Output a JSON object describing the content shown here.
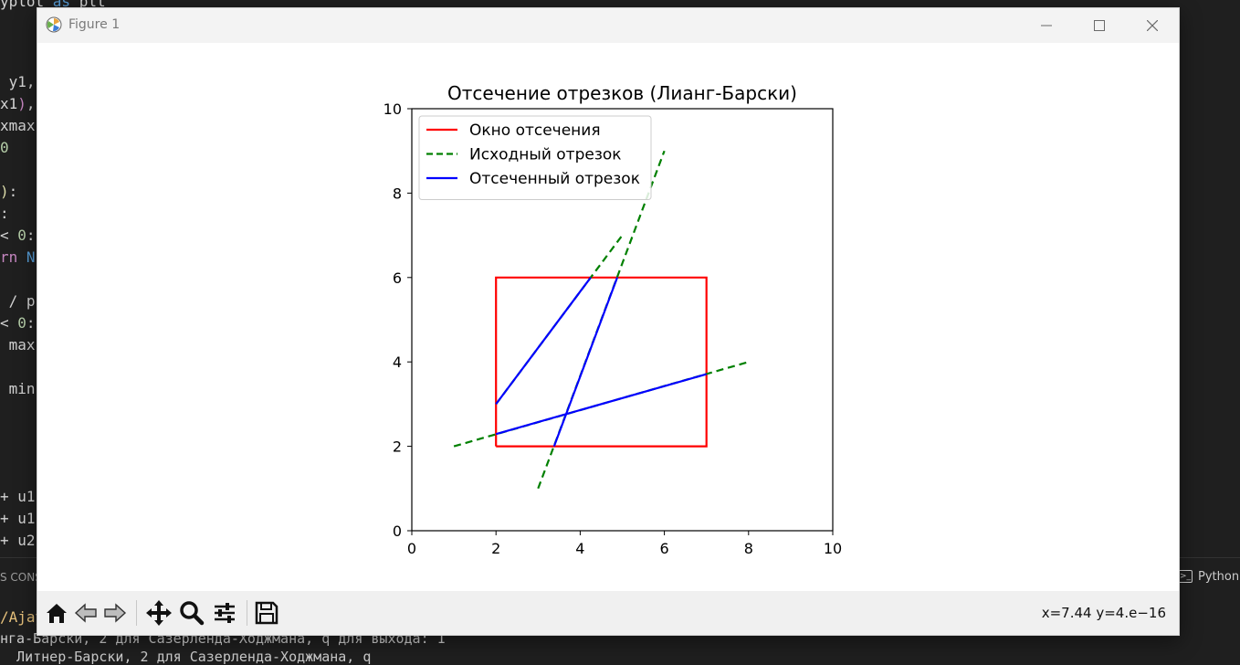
{
  "window": {
    "title": "Figure 1"
  },
  "background_code": [
    {
      "segments": [
        {
          "text": "yplot ",
          "cls": ""
        },
        {
          "text": "as",
          "cls": "kw"
        },
        {
          "text": " plt",
          "cls": ""
        }
      ]
    },
    {
      "segments": [
        {
          "text": " y1,",
          "cls": ""
        }
      ]
    },
    {
      "segments": [
        {
          "text": "x1",
          "cls": ""
        },
        {
          "text": ")",
          "cls": "pur"
        },
        {
          "text": ",",
          "cls": ""
        }
      ]
    },
    {
      "segments": [
        {
          "text": "xmax",
          "cls": ""
        }
      ]
    },
    {
      "segments": [
        {
          "text": "0",
          "cls": "num"
        }
      ]
    },
    {
      "segments": [
        {
          "text": ")",
          "cls": "yel"
        },
        {
          "text": ":",
          "cls": ""
        }
      ]
    },
    {
      "segments": [
        {
          "text": ":",
          "cls": ""
        }
      ]
    },
    {
      "segments": [
        {
          "text": "< ",
          "cls": ""
        },
        {
          "text": "0",
          "cls": "num"
        },
        {
          "text": ":",
          "cls": ""
        }
      ]
    },
    {
      "segments": [
        {
          "text": "rn",
          "cls": "pur"
        },
        {
          "text": " N",
          "cls": "kw"
        }
      ]
    },
    {
      "segments": [
        {
          "text": " / p",
          "cls": ""
        }
      ]
    },
    {
      "segments": [
        {
          "text": "< ",
          "cls": ""
        },
        {
          "text": "0",
          "cls": "num"
        },
        {
          "text": ":",
          "cls": ""
        }
      ]
    },
    {
      "segments": [
        {
          "text": " max",
          "cls": ""
        }
      ]
    },
    {
      "segments": [
        {
          "text": " min",
          "cls": ""
        }
      ]
    },
    {
      "segments": [
        {
          "text": "+ u1",
          "cls": ""
        }
      ]
    },
    {
      "segments": [
        {
          "text": "+ u1",
          "cls": ""
        }
      ]
    },
    {
      "segments": [
        {
          "text": "+ u2",
          "cls": ""
        }
      ]
    }
  ],
  "terminal": {
    "panel_label": "S CONS",
    "python_label": "Python",
    "prompt": "/Ajay",
    "output_line1": "нга-Барски, 2 для Сазерленда-Ходжмана, q для выхода: 1",
    "output_line2": "  Литнер-Барски, 2 для Сазерленда-Ходжмана, q"
  },
  "toolbar": {
    "buttons": [
      {
        "name": "home-button",
        "icon": "home-icon"
      },
      {
        "name": "back-button",
        "icon": "back-arrow-icon"
      },
      {
        "name": "forward-button",
        "icon": "forward-arrow-icon"
      },
      {
        "name": "pan-button",
        "icon": "move-icon"
      },
      {
        "name": "zoom-button",
        "icon": "magnifier-icon"
      },
      {
        "name": "configure-subplots-button",
        "icon": "sliders-icon"
      },
      {
        "name": "save-button",
        "icon": "floppy-disk-icon"
      }
    ],
    "coordinates": "x=7.44 y=4.e−16"
  },
  "chart_data": {
    "type": "line",
    "title": "Отсечение отрезков (Лианг-Барски)",
    "xlim": [
      0,
      10
    ],
    "ylim": [
      0,
      10
    ],
    "xticks": [
      0,
      2,
      4,
      6,
      8,
      10
    ],
    "yticks": [
      0,
      2,
      4,
      6,
      8,
      10
    ],
    "grid": false,
    "legend_position": "top-left",
    "series": [
      {
        "name": "Окно отсечения",
        "color": "#ff0000",
        "style": "solid",
        "x": [
          2,
          7,
          7,
          2,
          2
        ],
        "y": [
          2,
          2,
          6,
          6,
          2
        ]
      },
      {
        "name": "Исходный отрезок",
        "color": "#008000",
        "style": "dashed",
        "segments": [
          {
            "x": [
              1,
              8
            ],
            "y": [
              2,
              4
            ]
          },
          {
            "x": [
              2,
              5
            ],
            "y": [
              3,
              7
            ]
          },
          {
            "x": [
              3,
              6
            ],
            "y": [
              1,
              9
            ]
          }
        ]
      },
      {
        "name": "Отсеченный отрезок",
        "color": "#0000ff",
        "style": "solid",
        "segments": [
          {
            "x": [
              2,
              7
            ],
            "y": [
              2.29,
              3.71
            ]
          },
          {
            "x": [
              2,
              4.25
            ],
            "y": [
              3,
              6
            ]
          },
          {
            "x": [
              3.38,
              4.88
            ],
            "y": [
              2,
              6
            ]
          }
        ]
      }
    ]
  }
}
